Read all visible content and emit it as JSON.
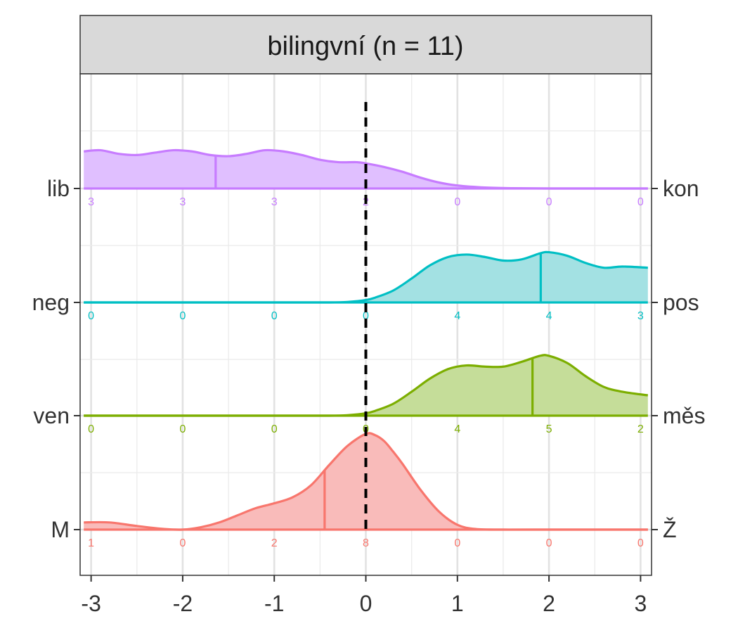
{
  "chart_data": {
    "type": "ridgeline",
    "title": "bilingvní (n = 11)",
    "xlim": [
      -3.12,
      3.12
    ],
    "x_ticks": [
      -3,
      -2,
      -1,
      0,
      1,
      2,
      3
    ],
    "x_tick_labels": [
      "-3",
      "-2",
      "-1",
      "0",
      "1",
      "2",
      "3"
    ],
    "reference_line_x": 0,
    "grid": true,
    "count_x": [
      -3,
      -2,
      -1,
      0,
      1,
      2,
      3
    ],
    "rows": [
      {
        "left_label": "lib",
        "right_label": "kon",
        "color": "#C77CFF",
        "fill": "#E0BFFF",
        "mean": -1.64,
        "counts": [
          "3",
          "3",
          "3",
          "2",
          "0",
          "0",
          "0"
        ],
        "density_x": [
          -3.08,
          -2.9,
          -2.7,
          -2.5,
          -2.3,
          -2.1,
          -1.9,
          -1.7,
          -1.5,
          -1.3,
          -1.1,
          -0.9,
          -0.7,
          -0.5,
          -0.3,
          -0.1,
          0.0,
          0.2,
          0.4,
          0.6,
          0.8,
          1.0,
          1.3,
          1.6,
          2.0,
          2.5,
          3.08
        ],
        "density_y": [
          0.31,
          0.32,
          0.29,
          0.28,
          0.3,
          0.32,
          0.31,
          0.28,
          0.27,
          0.29,
          0.32,
          0.31,
          0.28,
          0.24,
          0.22,
          0.22,
          0.21,
          0.18,
          0.14,
          0.09,
          0.05,
          0.025,
          0.008,
          0.002,
          0.0,
          0.0,
          0.0
        ]
      },
      {
        "left_label": "neg",
        "right_label": "pos",
        "color": "#00BFC4",
        "fill": "#A3E1E3",
        "mean": 1.91,
        "counts": [
          "0",
          "0",
          "0",
          "0",
          "4",
          "4",
          "3"
        ],
        "density_x": [
          -3.08,
          -2.0,
          -1.0,
          -0.4,
          -0.2,
          0.0,
          0.1,
          0.3,
          0.5,
          0.7,
          0.9,
          1.1,
          1.3,
          1.5,
          1.7,
          1.9,
          2.0,
          2.2,
          2.4,
          2.6,
          2.8,
          3.08
        ],
        "density_y": [
          0.0,
          0.0,
          0.0,
          0.0,
          0.004,
          0.02,
          0.04,
          0.1,
          0.2,
          0.31,
          0.38,
          0.4,
          0.38,
          0.35,
          0.36,
          0.41,
          0.42,
          0.39,
          0.33,
          0.29,
          0.3,
          0.29
        ]
      },
      {
        "left_label": "ven",
        "right_label": "měs",
        "color": "#7CAE00",
        "fill": "#C5DD99",
        "mean": 1.82,
        "counts": [
          "0",
          "0",
          "0",
          "0",
          "4",
          "5",
          "2"
        ],
        "density_x": [
          -3.08,
          -2.0,
          -1.0,
          -0.4,
          -0.2,
          0.0,
          0.1,
          0.3,
          0.5,
          0.7,
          0.9,
          1.1,
          1.3,
          1.5,
          1.7,
          1.9,
          2.0,
          2.2,
          2.4,
          2.6,
          2.8,
          3.08
        ],
        "density_y": [
          0.0,
          0.0,
          0.0,
          0.0,
          0.004,
          0.02,
          0.04,
          0.1,
          0.2,
          0.31,
          0.39,
          0.42,
          0.41,
          0.41,
          0.45,
          0.5,
          0.5,
          0.44,
          0.33,
          0.24,
          0.2,
          0.17
        ]
      },
      {
        "left_label": "M",
        "right_label": "Ž",
        "color": "#F8766D",
        "fill": "#F9BBBA",
        "mean": -0.45,
        "counts": [
          "1",
          "0",
          "2",
          "8",
          "0",
          "0",
          "0"
        ],
        "density_x": [
          -3.08,
          -2.8,
          -2.5,
          -2.2,
          -2.0,
          -1.8,
          -1.6,
          -1.4,
          -1.2,
          -1.0,
          -0.8,
          -0.6,
          -0.4,
          -0.2,
          0.0,
          0.1,
          0.2,
          0.3,
          0.4,
          0.6,
          0.8,
          1.0,
          1.2,
          1.5,
          2.0,
          3.08
        ],
        "density_y": [
          0.06,
          0.06,
          0.03,
          0.005,
          0.0,
          0.02,
          0.06,
          0.12,
          0.18,
          0.22,
          0.27,
          0.37,
          0.54,
          0.7,
          0.8,
          0.79,
          0.74,
          0.65,
          0.55,
          0.33,
          0.15,
          0.04,
          0.005,
          0.0,
          0.0,
          0.0
        ]
      }
    ]
  }
}
